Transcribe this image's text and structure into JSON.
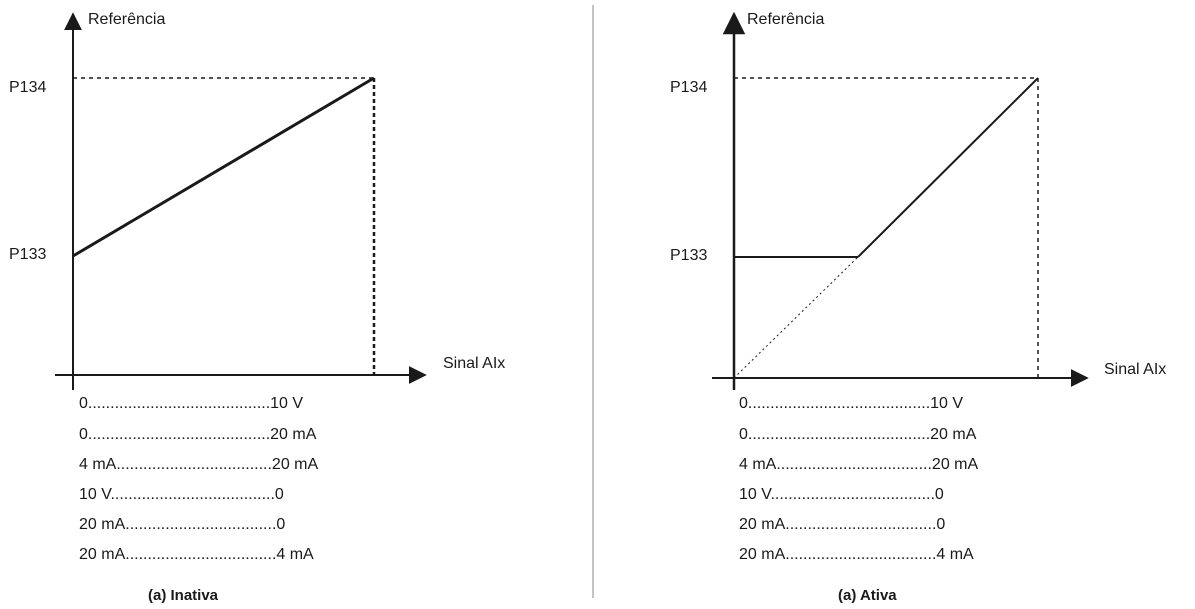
{
  "panels": [
    {
      "id": "inativa",
      "y_label": "Referência",
      "x_label": "Sinal AIx",
      "p_top": "P134",
      "p_low": "P133",
      "scales": [
        "0.........................................10 V",
        "0.........................................20 mA",
        "4 mA...................................20 mA",
        "10 V.....................................0",
        "20 mA..................................0",
        "20 mA..................................4 mA"
      ],
      "caption": "(a) Inativa"
    },
    {
      "id": "ativa",
      "y_label": "Referência",
      "x_label": "Sinal AIx",
      "p_top": "P134",
      "p_low": "P133",
      "scales": [
        "0.........................................10 V",
        "0.........................................20 mA",
        "4 mA...................................20 mA",
        "10 V.....................................0",
        "20 mA..................................0",
        "20 mA..................................4 mA"
      ],
      "caption": "(a) Ativa"
    }
  ]
}
